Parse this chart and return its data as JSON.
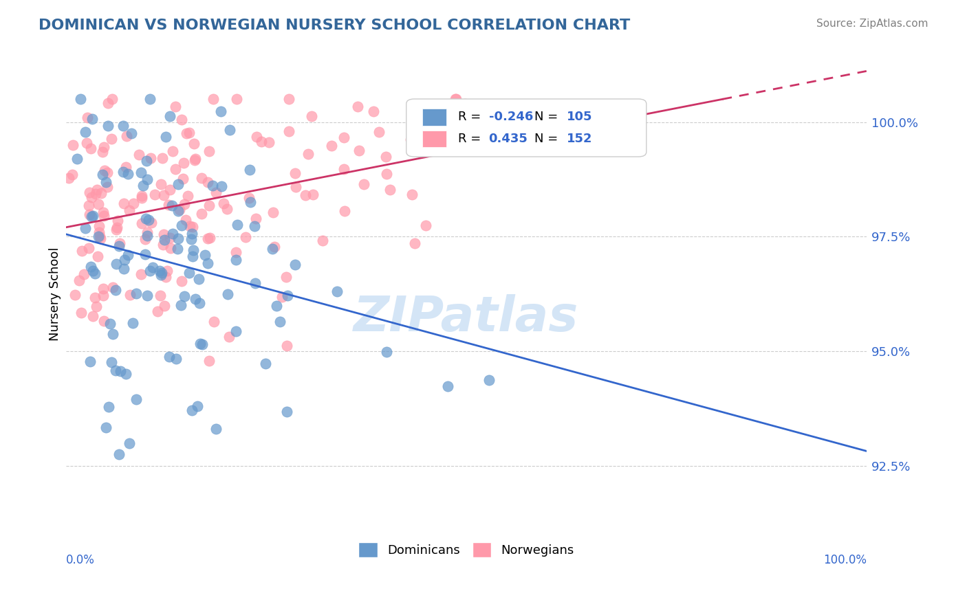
{
  "title": "DOMINICAN VS NORWEGIAN NURSERY SCHOOL CORRELATION CHART",
  "source_text": "Source: ZipAtlas.com",
  "ylabel": "Nursery School",
  "yticks": [
    0.925,
    0.95,
    0.975,
    1.0
  ],
  "ytick_labels": [
    "92.5%",
    "95.0%",
    "97.5%",
    "100.0%"
  ],
  "xmin": 0.0,
  "xmax": 1.0,
  "ymin": 0.91,
  "ymax": 1.015,
  "blue_R": "-0.246",
  "blue_N": "105",
  "pink_R": "0.435",
  "pink_N": "152",
  "blue_color": "#6699cc",
  "pink_color": "#ff99aa",
  "blue_line_color": "#3366cc",
  "pink_line_color": "#cc3366",
  "watermark": "ZIPatlas",
  "watermark_color": "#aaccee",
  "title_color": "#336699",
  "tick_color": "#3366cc",
  "grid_color": "#cccccc",
  "background_color": "#ffffff"
}
